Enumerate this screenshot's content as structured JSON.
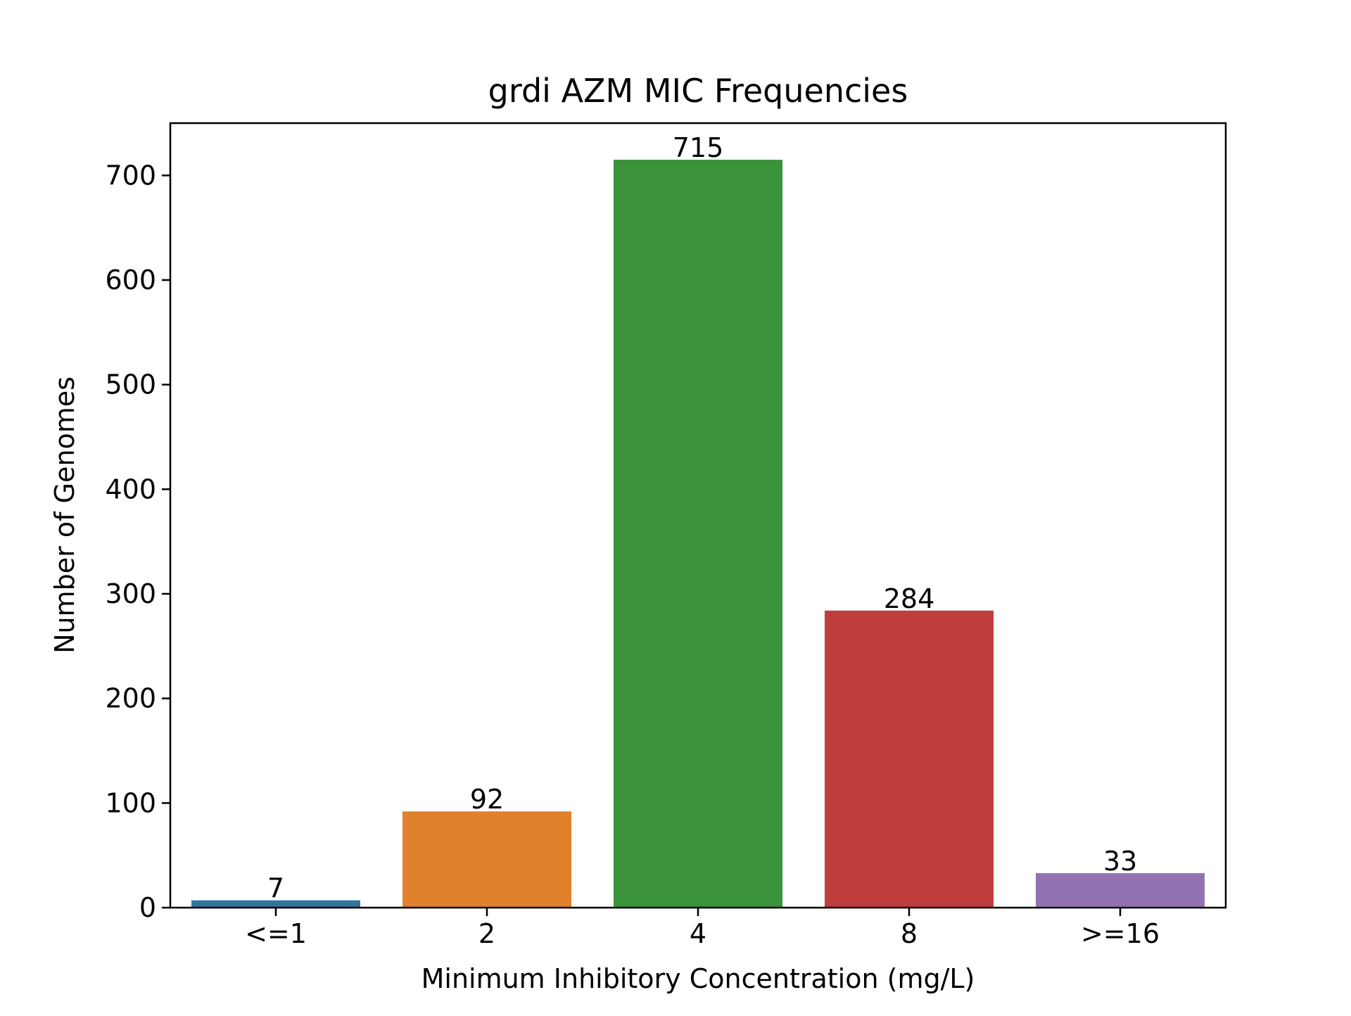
{
  "chart_data": {
    "type": "bar",
    "title": "grdi AZM MIC Frequencies",
    "xlabel": "Minimum Inhibitory Concentration (mg/L)",
    "ylabel": "Number of Genomes",
    "categories": [
      "<=1",
      "2",
      "4",
      "8",
      ">=16"
    ],
    "values": [
      7,
      92,
      715,
      284,
      33
    ],
    "data_labels": [
      "7",
      "92",
      "715",
      "284",
      "33"
    ],
    "colors": [
      "#3274a1",
      "#e1812c",
      "#3a923a",
      "#c03d3e",
      "#9372b2"
    ],
    "ylim": [
      0,
      750
    ],
    "yticks": [
      0,
      100,
      200,
      300,
      400,
      500,
      600,
      700
    ],
    "ytick_labels": [
      "0",
      "100",
      "200",
      "300",
      "400",
      "500",
      "600",
      "700"
    ],
    "grid": false,
    "legend": false
  }
}
